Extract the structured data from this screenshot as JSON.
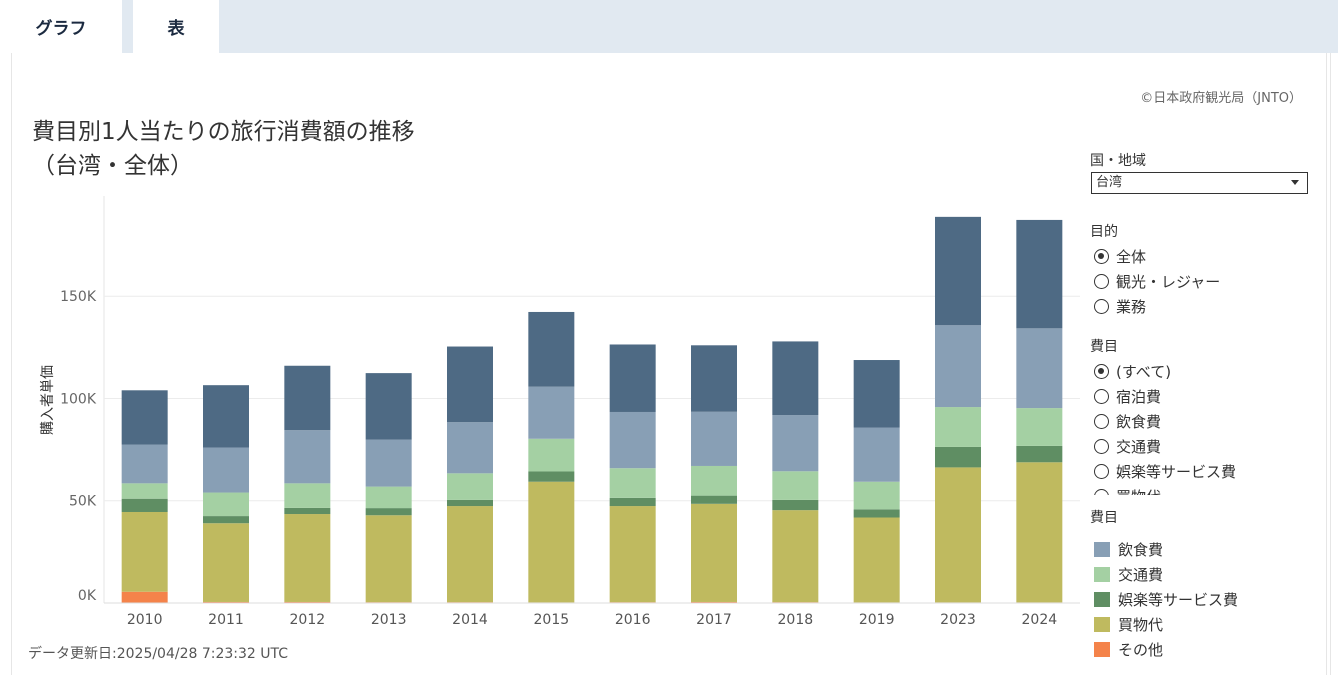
{
  "tabs": [
    "グラフ",
    "表"
  ],
  "copyright": "©日本政府観光局（JNTO）",
  "title_line1": "費目別1人当たりの旅行消費額の推移",
  "title_line2": "（台湾・全体）",
  "updated": "データ更新日:2025/04/28 7:23:32 UTC",
  "filters": {
    "country_label": "国・地域",
    "country_value": "台湾",
    "purpose_label": "目的",
    "purpose_options": [
      {
        "label": "全体",
        "selected": true
      },
      {
        "label": "観光・レジャー",
        "selected": false
      },
      {
        "label": "業務",
        "selected": false
      }
    ],
    "category_label": "費目",
    "category_options": [
      {
        "label": "(すべて)",
        "selected": true
      },
      {
        "label": "宿泊費",
        "selected": false
      },
      {
        "label": "飲食費",
        "selected": false
      },
      {
        "label": "交通費",
        "selected": false
      },
      {
        "label": "娯楽等サービス費",
        "selected": false
      },
      {
        "label": "買物代",
        "selected": false
      }
    ]
  },
  "legend": {
    "label": "費目",
    "items": [
      {
        "label": "飲食費",
        "color": "#889fb5"
      },
      {
        "label": "交通費",
        "color": "#a4d0a3"
      },
      {
        "label": "娯楽等サービス費",
        "color": "#5f8e63"
      },
      {
        "label": "買物代",
        "color": "#bfba5f"
      },
      {
        "label": "その他",
        "color": "#f4834a"
      }
    ]
  },
  "chart_data": {
    "type": "bar",
    "stacked": true,
    "ylabel": "購入者単価",
    "ytick_labels": [
      "0K",
      "50K",
      "100K",
      "150K"
    ],
    "categories": [
      "2010",
      "2011",
      "2012",
      "2013",
      "2014",
      "2015",
      "2016",
      "2017",
      "2018",
      "2019",
      "2023",
      "2024"
    ],
    "series": [
      {
        "name": "その他",
        "color": "#f4834a",
        "values": [
          5500,
          500,
          500,
          400,
          400,
          300,
          400,
          500,
          400,
          300,
          300,
          300
        ]
      },
      {
        "name": "買物代",
        "color": "#bfba5f",
        "values": [
          39000,
          38500,
          43000,
          42500,
          47000,
          59000,
          47000,
          48000,
          45000,
          41500,
          66000,
          68500
        ]
      },
      {
        "name": "娯楽等サービス費",
        "color": "#5f8e63",
        "values": [
          6500,
          3500,
          3000,
          3500,
          3000,
          5000,
          4000,
          4000,
          5000,
          4000,
          10000,
          8000
        ]
      },
      {
        "name": "交通費",
        "color": "#a4d0a3",
        "values": [
          7500,
          11500,
          12000,
          10500,
          13000,
          16000,
          14500,
          14500,
          14000,
          13500,
          19500,
          18500
        ]
      },
      {
        "name": "飲食費",
        "color": "#889fb5",
        "values": [
          19000,
          22000,
          26000,
          23000,
          25000,
          25500,
          27500,
          26500,
          27500,
          26500,
          40000,
          39000
        ]
      },
      {
        "name": "宿泊費",
        "color": "#4e6a84",
        "values": [
          26500,
          30500,
          31500,
          32500,
          37000,
          36500,
          33000,
          32500,
          36000,
          33000,
          53000,
          53000
        ]
      }
    ],
    "ylim": [
      0,
      199000
    ],
    "grid": true
  }
}
